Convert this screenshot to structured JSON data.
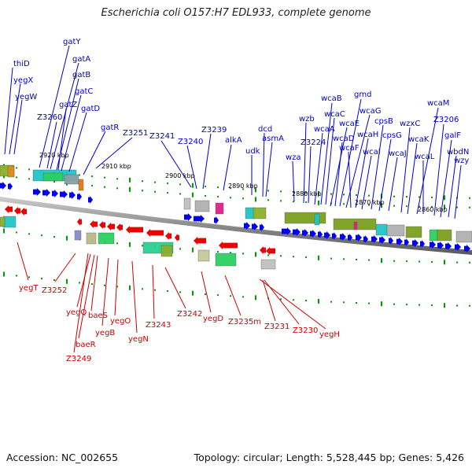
{
  "title": "Escherichia coli O157:H7 EDL933, complete genome",
  "footer": {
    "accession": "Accession: NC_002655",
    "topology": "Topology: circular; Length: 5,528,445 bp; Genes: 5,426"
  },
  "colors": {
    "forward_gene": "#0000ee",
    "reverse_gene": "#ee0000",
    "forward_label": "#0000cc",
    "reverse_label": "#cc0000",
    "backbone": "#888888",
    "tick": "#009900"
  },
  "ruler_labels": [
    "2920 kbp",
    "2910 kbp",
    "2900 kbp",
    "2890 kbp",
    "2880 kbp",
    "2870 kbp",
    "2860 kbp"
  ],
  "forward_labels": [
    "thiD",
    "yegX",
    "yegW",
    "gatY",
    "gatA",
    "gatB",
    "gatC",
    "gatD",
    "gatZ",
    "Z3260",
    "gatR",
    "Z3251",
    "Z3241",
    "Z3240",
    "Z3239",
    "alkA",
    "dcd",
    "asmA",
    "udk",
    "wza",
    "wzb",
    "Z3224",
    "wcaA",
    "wcaB",
    "wcaC",
    "wcaE",
    "wcaD",
    "gmd",
    "wcaG",
    "wcaF",
    "wcaH",
    "wcaI",
    "cpsB",
    "cpsG",
    "wcaJ",
    "wzxC",
    "wcaK",
    "wcaM",
    "Z3206",
    "wcaL",
    "galF",
    "wbdN",
    "wzy"
  ],
  "reverse_labels": [
    "yegT",
    "Z3252",
    "yegQ",
    "baeS",
    "baeR",
    "Z3249",
    "yegB",
    "yegO",
    "yegN",
    "Z3243",
    "Z3242",
    "yegD",
    "Z3235m",
    "Z3231",
    "Z3230",
    "yegH"
  ]
}
